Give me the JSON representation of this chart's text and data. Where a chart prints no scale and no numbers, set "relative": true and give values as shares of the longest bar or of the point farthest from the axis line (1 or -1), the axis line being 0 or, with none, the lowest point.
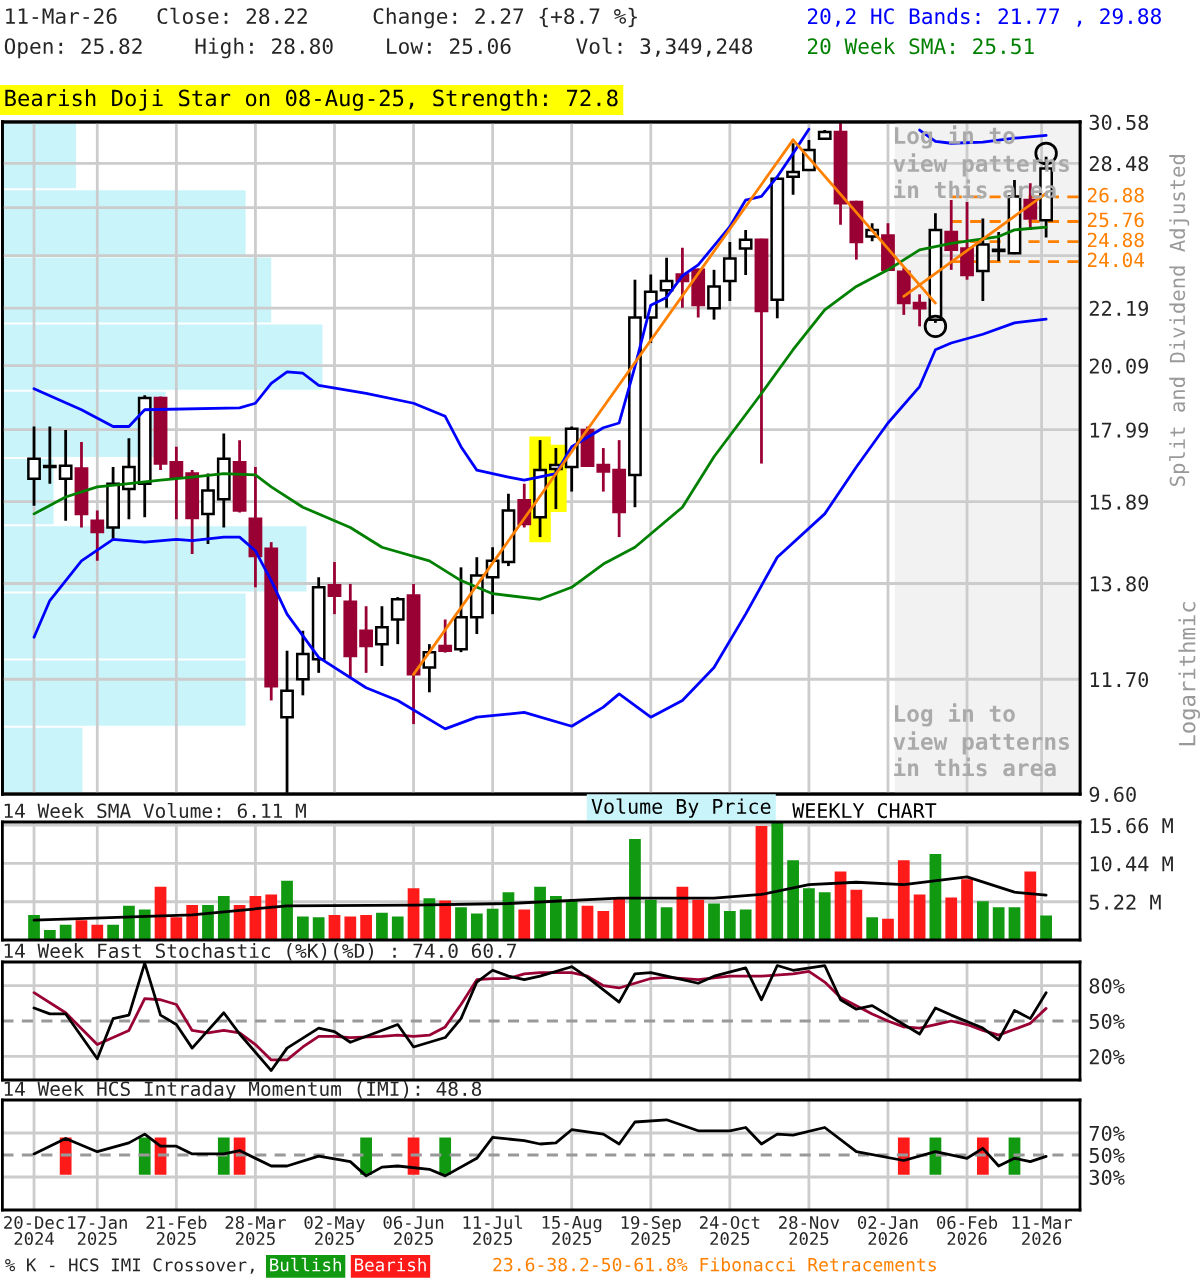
{
  "chart_data": [
    {
      "type": "candlestick",
      "title": "11-Mar-26   Close: 28.22     Change: 2.27 {+8.7 %}",
      "subtitle": "Open: 25.82    High: 28.80    Low: 25.06     Vol: 3,349,248",
      "ylabel": "Split and Dividend Adjusted",
      "annotations": [
        "Bearish Doji Star on 08-Aug-25, Strength: 72.8",
        "Log in to\nview patterns\nin this area",
        "Log in to\nview patterns\nin this area",
        "Logarithmic",
        "23.6-38.2-50-61.8% Fibonacci Retracements",
        "Volume By Price"
      ],
      "x": [
        "2024-12-20",
        "2024-12-27",
        "2025-01-03",
        "2025-01-10",
        "2025-01-17",
        "2025-01-24",
        "2025-01-31",
        "2025-02-07",
        "2025-02-14",
        "2025-02-21",
        "2025-02-28",
        "2025-03-07",
        "2025-03-14",
        "2025-03-21",
        "2025-03-28",
        "2025-04-04",
        "2025-04-11",
        "2025-04-18",
        "2025-04-25",
        "2025-05-02",
        "2025-05-09",
        "2025-05-16",
        "2025-05-23",
        "2025-05-30",
        "2025-06-06",
        "2025-06-13",
        "2025-06-20",
        "2025-06-27",
        "2025-07-04",
        "2025-07-11",
        "2025-07-18",
        "2025-07-25",
        "2025-08-01",
        "2025-08-08",
        "2025-08-15",
        "2025-08-22",
        "2025-08-29",
        "2025-09-05",
        "2025-09-12",
        "2025-09-19",
        "2025-09-26",
        "2025-10-03",
        "2025-10-10",
        "2025-10-17",
        "2025-10-24",
        "2025-10-31",
        "2025-11-07",
        "2025-11-14",
        "2025-11-21",
        "2025-11-28",
        "2025-12-05",
        "2025-12-12",
        "2025-12-19",
        "2025-12-26",
        "2026-01-02",
        "2026-01-09",
        "2026-01-16",
        "2026-01-23",
        "2026-01-30",
        "2026-02-06",
        "2026-02-13",
        "2026-02-20",
        "2026-02-27",
        "2026-03-06",
        "2026-03-13"
      ],
      "ohlc": [
        [
          16.53,
          18.09,
          15.78,
          17.11
        ],
        [
          16.87,
          18.09,
          16.39,
          16.9
        ],
        [
          16.53,
          17.98,
          15.38,
          16.91
        ],
        [
          16.83,
          17.61,
          15.2,
          15.56
        ],
        [
          15.38,
          15.65,
          14.35,
          15.08
        ],
        [
          15.2,
          16.87,
          14.89,
          16.39
        ],
        [
          16.24,
          17.73,
          15.42,
          16.87
        ],
        [
          16.39,
          19.09,
          15.47,
          19.0
        ],
        [
          19.0,
          19.05,
          16.78,
          16.97
        ],
        [
          17.01,
          17.47,
          15.42,
          16.58
        ],
        [
          16.68,
          16.78,
          14.52,
          15.45
        ],
        [
          15.56,
          16.68,
          14.77,
          16.2
        ],
        [
          15.96,
          17.87,
          15.2,
          17.11
        ],
        [
          17.01,
          17.67,
          15.6,
          15.65
        ],
        [
          15.43,
          16.87,
          13.71,
          14.47
        ],
        [
          14.65,
          14.82,
          11.28,
          11.56
        ],
        [
          10.96,
          12.29,
          9.62,
          11.47
        ],
        [
          11.7,
          12.72,
          11.38,
          12.22
        ],
        [
          12.11,
          13.95,
          11.83,
          13.71
        ],
        [
          13.76,
          14.32,
          13.09,
          13.51
        ],
        [
          13.37,
          13.79,
          11.74,
          12.18
        ],
        [
          12.72,
          13.27,
          11.83,
          12.39
        ],
        [
          12.43,
          13.27,
          11.97,
          12.8
        ],
        [
          12.97,
          13.48,
          12.43,
          13.43
        ],
        [
          13.52,
          13.79,
          10.83,
          11.8
        ],
        [
          11.94,
          12.43,
          11.44,
          12.26
        ],
        [
          12.39,
          12.97,
          12.25,
          12.29
        ],
        [
          12.32,
          14.19,
          12.26,
          13.02
        ],
        [
          13.02,
          14.44,
          12.65,
          13.99
        ],
        [
          13.95,
          14.69,
          13.09,
          14.35
        ],
        [
          14.32,
          16.11,
          14.22,
          15.65
        ],
        [
          15.93,
          16.39,
          15.2,
          15.29
        ],
        [
          15.47,
          17.67,
          14.95,
          16.78
        ],
        [
          16.81,
          17.43,
          15.69,
          16.93
        ],
        [
          16.87,
          18.09,
          16.17,
          18.02
        ],
        [
          17.98,
          18.09,
          16.87,
          16.91
        ],
        [
          16.93,
          17.43,
          16.17,
          16.74
        ],
        [
          16.78,
          17.67,
          14.95,
          15.61
        ],
        [
          16.64,
          23.3,
          15.74,
          21.83
        ],
        [
          21.83,
          23.51,
          20.89,
          22.82
        ],
        [
          22.88,
          24.2,
          22.2,
          23.25
        ],
        [
          23.51,
          24.62,
          22.2,
          23.25
        ],
        [
          23.7,
          23.75,
          21.83,
          22.31
        ],
        [
          22.18,
          23.7,
          21.75,
          23.03
        ],
        [
          23.25,
          24.87,
          22.46,
          24.17
        ],
        [
          24.59,
          25.39,
          23.49,
          24.96
        ],
        [
          24.96,
          25.0,
          16.97,
          22.08
        ],
        [
          22.51,
          27.83,
          21.8,
          27.73
        ],
        [
          27.83,
          29.48,
          26.98,
          28.05
        ],
        [
          28.15,
          29.65,
          28.1,
          29.14
        ],
        [
          29.71,
          30.16,
          29.65,
          30.06
        ],
        [
          30.06,
          30.55,
          25.62,
          26.58
        ],
        [
          26.64,
          26.7,
          24.12,
          24.87
        ],
        [
          25.1,
          25.68,
          24.9,
          25.39
        ],
        [
          25.15,
          25.68,
          23.65,
          23.7
        ],
        [
          23.62,
          23.79,
          21.93,
          22.38
        ],
        [
          22.38,
          22.72,
          21.5,
          22.18
        ],
        [
          21.75,
          26.13,
          21.63,
          25.39
        ],
        [
          25.3,
          26.73,
          23.7,
          24.53
        ],
        [
          24.59,
          26.64,
          23.3,
          23.49
        ],
        [
          23.65,
          25.89,
          22.46,
          24.76
        ],
        [
          24.48,
          25.3,
          24.06,
          24.53
        ],
        [
          24.39,
          27.67,
          24.35,
          26.89
        ],
        [
          26.73,
          27.51,
          25.39,
          25.89
        ],
        [
          25.82,
          28.8,
          25.06,
          28.22
        ]
      ],
      "series": [
        {
          "type": "bar",
          "color": "#ffff00",
          "x": [
            "2025-08-01",
            "2025-08-08"
          ],
          "base": [
            14.82,
            15.61
          ],
          "values": [
            2.96,
            1.92
          ]
        },
        {
          "type": "line",
          "name": "20,2 HC Bands: 21.77 , 29.88",
          "color": "#0000ff",
          "x": [
            "2024-12-20",
            "2025-01-10",
            "2025-01-24",
            "2025-01-31",
            "2025-02-07",
            "2025-03-21",
            "2025-03-28",
            "2025-04-04",
            "2025-04-11",
            "2025-04-18",
            "2025-04-25",
            "2025-05-16",
            "2025-06-06",
            "2025-06-20",
            "2025-06-27",
            "2025-07-04",
            "2025-07-18",
            "2025-07-25",
            "2025-08-08",
            "2025-08-15",
            "2025-08-29",
            "2025-09-05",
            "2025-09-12",
            "2025-09-19",
            "2025-09-26",
            "2025-10-03",
            "2025-10-10",
            "2025-10-24",
            "2025-10-31",
            "2025-11-07",
            "2025-11-14",
            "2025-11-21",
            "2025-11-28",
            "2025-12-19",
            "2026-01-16",
            "2026-01-23",
            "2026-01-30",
            "2026-02-13",
            "2026-02-27",
            "2026-03-13"
          ],
          "values": [
            19.31,
            18.62,
            18.09,
            18.09,
            18.62,
            18.68,
            18.83,
            19.49,
            19.88,
            19.83,
            19.42,
            19.15,
            18.83,
            18.41,
            17.47,
            16.78,
            16.58,
            16.49,
            16.68,
            17.47,
            18.05,
            18.2,
            20.06,
            22.3,
            22.6,
            23.46,
            23.9,
            25.53,
            26.73,
            26.9,
            27.83,
            28.97,
            30.2,
            null,
            30.16,
            29.58,
            29.48,
            29.54,
            29.74,
            29.88
          ]
        },
        {
          "type": "line",
          "color": "#0000ff",
          "x": [
            "2024-12-20",
            "2024-12-27",
            "2025-01-10",
            "2025-01-24",
            "2025-02-07",
            "2025-02-21",
            "2025-02-28",
            "2025-03-14",
            "2025-03-21",
            "2025-03-28",
            "2025-04-04",
            "2025-04-11",
            "2025-04-25",
            "2025-05-16",
            "2025-05-30",
            "2025-06-20",
            "2025-07-04",
            "2025-07-25",
            "2025-08-15",
            "2025-08-29",
            "2025-09-05",
            "2025-09-19",
            "2025-10-03",
            "2025-10-17",
            "2025-10-31",
            "2025-11-14",
            "2025-12-05",
            "2025-12-19",
            "2026-01-02",
            "2026-01-16",
            "2026-01-23",
            "2026-01-30",
            "2026-02-13",
            "2026-02-27",
            "2026-03-13"
          ],
          "values": [
            12.58,
            13.4,
            14.35,
            14.89,
            14.82,
            14.89,
            14.86,
            14.95,
            14.95,
            14.6,
            13.87,
            13.09,
            12.15,
            11.53,
            11.28,
            10.74,
            10.96,
            11.05,
            10.79,
            11.15,
            11.41,
            10.96,
            11.28,
            11.94,
            13.09,
            14.44,
            15.56,
            16.87,
            18.2,
            19.38,
            20.65,
            20.89,
            21.21,
            21.63,
            21.77
          ]
        },
        {
          "type": "line",
          "name": "20 Week SMA: 25.51",
          "color": "#008000",
          "x": [
            "2024-12-20",
            "2025-01-03",
            "2025-01-17",
            "2025-01-31",
            "2025-02-14",
            "2025-02-28",
            "2025-03-14",
            "2025-03-28",
            "2025-04-04",
            "2025-04-18",
            "2025-05-09",
            "2025-05-23",
            "2025-06-13",
            "2025-06-27",
            "2025-07-11",
            "2025-08-01",
            "2025-08-15",
            "2025-08-29",
            "2025-09-12",
            "2025-10-03",
            "2025-10-17",
            "2025-11-07",
            "2025-11-21",
            "2025-12-05",
            "2025-12-19",
            "2026-01-02",
            "2026-01-16",
            "2026-01-30",
            "2026-02-20",
            "2026-02-27",
            "2026-03-13"
          ],
          "values": [
            15.56,
            16.02,
            16.3,
            16.39,
            16.49,
            16.58,
            16.68,
            16.64,
            16.3,
            15.74,
            15.2,
            14.69,
            14.35,
            13.87,
            13.56,
            13.43,
            13.71,
            14.27,
            14.69,
            15.74,
            17.17,
            19.15,
            20.65,
            22.12,
            23.03,
            23.7,
            24.53,
            24.81,
            25.1,
            25.39,
            25.51
          ]
        },
        {
          "type": "line",
          "color": "#ff8000",
          "x": [
            "2025-06-06",
            "2025-11-21"
          ],
          "values": [
            11.8,
            29.65
          ]
        },
        {
          "type": "line",
          "color": "#ff8000",
          "x": [
            "2025-11-21",
            "2026-01-23"
          ],
          "values": [
            29.65,
            22.38
          ]
        },
        {
          "type": "line",
          "color": "#ff8000",
          "x": [
            "2026-01-09",
            "2026-03-13"
          ],
          "values": [
            22.64,
            27.04
          ]
        },
        {
          "type": "scatter",
          "color": "#000000",
          "marker": "circle",
          "x": [
            "2026-01-23",
            "2026-03-13"
          ],
          "values": [
            21.5,
            28.97
          ]
        }
      ],
      "xlim": [
        "2024-12-06",
        "2026-03-28"
      ],
      "ylim": [
        9.6,
        30.58
      ],
      "log": true,
      "grid": true,
      "tick_labels": "y",
      "legend": "top right",
      "xticks": [
        {
          "value": "2024-12-20",
          "label": null
        },
        {
          "value": "2025-01-17",
          "label": null
        },
        {
          "value": "2025-02-21",
          "label": null
        },
        {
          "value": "2025-03-28",
          "label": null
        },
        {
          "value": "2025-05-02",
          "label": null
        },
        {
          "value": "2025-06-06",
          "label": null
        },
        {
          "value": "2025-07-11",
          "label": null
        },
        {
          "value": "2025-08-15",
          "label": null
        },
        {
          "value": "2025-09-19",
          "label": null
        },
        {
          "value": "2025-10-24",
          "label": null
        },
        {
          "value": "2025-11-28",
          "label": null
        },
        {
          "value": "2026-01-02",
          "label": null
        },
        {
          "value": "2026-02-06",
          "label": null
        },
        {
          "value": "2026-03-11",
          "label": null
        }
      ],
      "yticks": [
        {
          "value": 9.6,
          "label": "9.60"
        },
        {
          "value": 11.7,
          "label": "11.70"
        },
        {
          "value": 13.8,
          "label": "13.80"
        },
        15.89,
        17.99,
        20.09,
        22.19,
        {
          "value": 24.29,
          "label": null
        },
        {
          "value": 26.38,
          "label": null
        },
        28.48,
        30.58
      ],
      "ref_lines": [
        {
          "axis": "y",
          "value": 26.88,
          "label": "26.88",
          "color": "#ff8000",
          "line_style": "dashed"
        },
        {
          "axis": "y",
          "value": 25.76,
          "label": "25.76",
          "color": "#ff8000",
          "line_style": "dashed"
        },
        {
          "axis": "y",
          "value": 24.88,
          "label": "24.88",
          "color": "#ff8000",
          "line_style": "dashed"
        },
        {
          "axis": "y",
          "value": 24.04,
          "label": "24.04",
          "color": "#ff8000",
          "line_style": "dashed"
        }
      ],
      "bands": [
        {
          "axis": "x",
          "from": "2026-01-05",
          "to": "2026-03-28",
          "color": "#f2f2f2"
        }
      ]
    },
    {
      "type": "bar",
      "orientation": "horizontal",
      "relative": true,
      "color": "#c8f4fa",
      "categories": [
        null,
        null,
        null,
        null,
        null,
        null,
        null,
        null,
        null,
        null
      ],
      "values": [
        0.23,
        0.76,
        0.84,
        1,
        0.51,
        0.16,
        0.95,
        0.76,
        0.76,
        0.25
      ]
    },
    {
      "type": "bar",
      "title": "14 Week SMA Volume: 6.11 M",
      "annotations": [
        "WEEKLY CHART"
      ],
      "x": [
        "2024-12-20",
        "2024-12-27",
        "2025-01-03",
        "2025-01-10",
        "2025-01-17",
        "2025-01-24",
        "2025-01-31",
        "2025-02-07",
        "2025-02-14",
        "2025-02-21",
        "2025-02-28",
        "2025-03-07",
        "2025-03-14",
        "2025-03-21",
        "2025-03-28",
        "2025-04-04",
        "2025-04-11",
        "2025-04-18",
        "2025-04-25",
        "2025-05-02",
        "2025-05-09",
        "2025-05-16",
        "2025-05-23",
        "2025-05-30",
        "2025-06-06",
        "2025-06-13",
        "2025-06-20",
        "2025-06-27",
        "2025-07-04",
        "2025-07-11",
        "2025-07-18",
        "2025-07-25",
        "2025-08-01",
        "2025-08-08",
        "2025-08-15",
        "2025-08-22",
        "2025-08-29",
        "2025-09-05",
        "2025-09-12",
        "2025-09-19",
        "2025-09-26",
        "2025-10-03",
        "2025-10-10",
        "2025-10-17",
        "2025-10-24",
        "2025-10-31",
        "2025-11-07",
        "2025-11-14",
        "2025-11-21",
        "2025-11-28",
        "2025-12-05",
        "2025-12-12",
        "2025-12-19",
        "2025-12-26",
        "2026-01-02",
        "2026-01-09",
        "2026-01-16",
        "2026-01-23",
        "2026-01-30",
        "2026-02-06",
        "2026-02-13",
        "2026-02-20",
        "2026-02-27",
        "2026-03-06",
        "2026-03-13"
      ],
      "series": [
        {
          "type": "bar",
          "values": [
            3.42,
            1.35,
            2.07,
            2.7,
            2.07,
            2.07,
            4.67,
            4.15,
            7.26,
            3.11,
            4.77,
            4.77,
            6.01,
            4.77,
            6.01,
            6.22,
            8.09,
            3.21,
            3.11,
            3.42,
            3.21,
            3.42,
            3.73,
            3.21,
            7.05,
            5.7,
            5.39,
            4.46,
            3.63,
            4.25,
            6.53,
            4.15,
            7.26,
            6.01,
            5.39,
            4.67,
            3.94,
            5.81,
            13.79,
            5.5,
            4.46,
            7.26,
            5.5,
            4.98,
            3.94,
            4.15,
            15.56,
            16.07,
            10.89,
            7.05,
            6.53,
            9.33,
            6.84,
            3.11,
            2.9,
            10.89,
            6.22,
            11.72,
            5.81,
            8.3,
            5.29,
            4.46,
            4.46,
            9.33,
            3.35
          ],
          "colors": [
            "#119911",
            "#119911",
            "#119911",
            "#ff1a1a",
            "#ff1a1a",
            "#119911",
            "#119911",
            "#119911",
            "#ff1a1a",
            "#ff1a1a",
            "#ff1a1a",
            "#119911",
            "#119911",
            "#ff1a1a",
            "#ff1a1a",
            "#ff1a1a",
            "#119911",
            "#119911",
            "#119911",
            "#ff1a1a",
            "#ff1a1a",
            "#ff1a1a",
            "#119911",
            "#119911",
            "#ff1a1a",
            "#119911",
            "#ff1a1a",
            "#119911",
            "#119911",
            "#119911",
            "#119911",
            "#ff1a1a",
            "#119911",
            "#119911",
            "#119911",
            "#ff1a1a",
            "#ff1a1a",
            "#ff1a1a",
            "#119911",
            "#119911",
            "#119911",
            "#ff1a1a",
            "#ff1a1a",
            "#119911",
            "#119911",
            "#119911",
            "#ff1a1a",
            "#119911",
            "#119911",
            "#119911",
            "#119911",
            "#ff1a1a",
            "#ff1a1a",
            "#119911",
            "#ff1a1a",
            "#ff1a1a",
            "#ff1a1a",
            "#119911",
            "#ff1a1a",
            "#ff1a1a",
            "#119911",
            "#119911",
            "#119911",
            "#ff1a1a",
            "#119911"
          ]
        },
        {
          "type": "line",
          "color": "#000000",
          "x": [
            "2024-12-20",
            "2025-02-28",
            "2025-04-11",
            "2025-06-06",
            "2025-07-18",
            "2025-09-05",
            "2025-10-17",
            "2025-11-07",
            "2025-11-28",
            "2025-12-19",
            "2026-01-09",
            "2026-02-06",
            "2026-02-27",
            "2026-03-13"
          ],
          "values": [
            2.7,
            3.42,
            4.67,
            4.77,
            4.98,
            5.7,
            5.7,
            6.22,
            7.57,
            7.88,
            7.57,
            8.61,
            6.53,
            6.11
          ]
        }
      ],
      "xlim": [
        "2024-12-06",
        "2026-03-28"
      ],
      "ylim": [
        0,
        16.1
      ],
      "grid": true,
      "tick_labels": "y",
      "xticks": [
        {
          "value": "2024-12-20",
          "label": null
        },
        {
          "value": "2025-01-17",
          "label": null
        },
        {
          "value": "2025-02-21",
          "label": null
        },
        {
          "value": "2025-03-28",
          "label": null
        },
        {
          "value": "2025-05-02",
          "label": null
        },
        {
          "value": "2025-06-06",
          "label": null
        },
        {
          "value": "2025-07-11",
          "label": null
        },
        {
          "value": "2025-08-15",
          "label": null
        },
        {
          "value": "2025-09-19",
          "label": null
        },
        {
          "value": "2025-10-24",
          "label": null
        },
        {
          "value": "2025-11-28",
          "label": null
        },
        {
          "value": "2026-01-02",
          "label": null
        },
        {
          "value": "2026-02-06",
          "label": null
        },
        {
          "value": "2026-03-11",
          "label": null
        }
      ],
      "yticks": [
        {
          "value": 5.22,
          "label": "5.22 M"
        },
        {
          "value": 10.44,
          "label": "10.44 M"
        },
        {
          "value": 15.66,
          "label": "15.66 M"
        }
      ]
    },
    {
      "type": "line",
      "title": "14 Week Fast Stochastic (%K)(%D) : 74.0 60.7",
      "series": [
        {
          "color": "#990033",
          "x": [
            "2024-12-20",
            "2025-01-03",
            "2025-01-17",
            "2025-01-31",
            "2025-02-07",
            "2025-02-14",
            "2025-02-21",
            "2025-02-28",
            "2025-03-07",
            "2025-03-14",
            "2025-03-21",
            "2025-03-28",
            "2025-04-04",
            "2025-04-11",
            "2025-04-18",
            "2025-04-25",
            "2025-05-02",
            "2025-05-09",
            "2025-05-23",
            "2025-05-30",
            "2025-06-06",
            "2025-06-13",
            "2025-06-20",
            "2025-06-27",
            "2025-07-04",
            "2025-07-11",
            "2025-07-18",
            "2025-07-25",
            "2025-08-01",
            "2025-08-15",
            "2025-08-22",
            "2025-08-29",
            "2025-09-05",
            "2025-09-12",
            "2025-09-19",
            "2025-09-26",
            "2025-10-10",
            "2025-10-24",
            "2025-11-07",
            "2025-11-21",
            "2025-11-28",
            "2025-12-05",
            "2025-12-12",
            "2025-12-19",
            "2025-12-26",
            "2026-01-02",
            "2026-01-09",
            "2026-01-16",
            "2026-01-23",
            "2026-01-30",
            "2026-02-06",
            "2026-02-13",
            "2026-02-20",
            "2026-02-27",
            "2026-03-06",
            "2026-03-13"
          ],
          "values": [
            74,
            57,
            30,
            42,
            69,
            68,
            64,
            42,
            40,
            42,
            40,
            30,
            17,
            17,
            28,
            37,
            37,
            36,
            37,
            38,
            37,
            38,
            45,
            64,
            85,
            86,
            86,
            90,
            91,
            91,
            88,
            80,
            78,
            82,
            86,
            87,
            85,
            88,
            88,
            90,
            92,
            83,
            70,
            63,
            56,
            50,
            45,
            44,
            47,
            50,
            47,
            42,
            38,
            43,
            48,
            60.7
          ]
        },
        {
          "color": "#000000",
          "x": [
            "2024-12-20",
            "2024-12-27",
            "2025-01-03",
            "2025-01-17",
            "2025-01-24",
            "2025-01-31",
            "2025-02-07",
            "2025-02-14",
            "2025-02-21",
            "2025-02-28",
            "2025-03-14",
            "2025-03-21",
            "2025-04-04",
            "2025-04-11",
            "2025-04-25",
            "2025-05-02",
            "2025-05-09",
            "2025-05-30",
            "2025-06-06",
            "2025-06-20",
            "2025-06-27",
            "2025-07-04",
            "2025-07-11",
            "2025-07-18",
            "2025-07-25",
            "2025-08-01",
            "2025-08-15",
            "2025-08-22",
            "2025-09-05",
            "2025-09-12",
            "2025-09-19",
            "2025-10-03",
            "2025-10-10",
            "2025-10-17",
            "2025-10-31",
            "2025-11-07",
            "2025-11-14",
            "2025-11-21",
            "2025-12-05",
            "2025-12-12",
            "2025-12-19",
            "2025-12-26",
            "2026-01-09",
            "2026-01-16",
            "2026-01-23",
            "2026-01-30",
            "2026-02-13",
            "2026-02-20",
            "2026-02-27",
            "2026-03-06",
            "2026-03-13"
          ],
          "values": [
            61,
            56,
            56,
            18,
            52,
            55,
            99,
            55,
            47,
            27,
            57,
            39,
            8,
            27,
            44,
            41,
            32,
            47,
            28,
            36,
            52,
            83,
            93,
            88,
            85,
            88,
            96,
            87,
            66,
            90,
            91,
            85,
            82,
            88,
            95,
            68,
            97,
            93,
            97,
            68,
            60,
            63,
            47,
            39,
            61,
            55,
            44,
            34,
            59,
            52,
            74.0
          ]
        }
      ],
      "xlim": [
        "2024-12-06",
        "2026-03-28"
      ],
      "ylim": [
        0,
        100
      ],
      "grid": true,
      "tick_labels": "y",
      "xticks": [
        {
          "value": "2024-12-20",
          "label": null
        },
        {
          "value": "2025-01-17",
          "label": null
        },
        {
          "value": "2025-02-21",
          "label": null
        },
        {
          "value": "2025-03-28",
          "label": null
        },
        {
          "value": "2025-05-02",
          "label": null
        },
        {
          "value": "2025-06-06",
          "label": null
        },
        {
          "value": "2025-07-11",
          "label": null
        },
        {
          "value": "2025-08-15",
          "label": null
        },
        {
          "value": "2025-09-19",
          "label": null
        },
        {
          "value": "2025-10-24",
          "label": null
        },
        {
          "value": "2025-11-28",
          "label": null
        },
        {
          "value": "2026-01-02",
          "label": null
        },
        {
          "value": "2026-02-06",
          "label": null
        },
        {
          "value": "2026-03-11",
          "label": null
        }
      ],
      "yticks": [
        {
          "value": 20,
          "label": "20%"
        },
        {
          "value": 50,
          "label": "50%"
        },
        {
          "value": 80,
          "label": "80%"
        }
      ],
      "ref_lines": [
        {
          "axis": "y",
          "value": 50,
          "color": "#999999",
          "line_style": "dashed"
        }
      ]
    },
    {
      "type": "line",
      "title": "14 Week HCS Intraday Momentum (IMI): 48.8",
      "legend": "bottom",
      "legend_title": "% K - HCS IMI Crossover,",
      "series": [
        {
          "type": "bar",
          "name": "Bullish",
          "color": "#119911",
          "x": [
            "2025-02-07",
            "2025-03-14",
            "2025-05-16",
            "2025-06-20",
            "2026-01-23",
            "2026-02-27"
          ],
          "base": [
            32,
            32,
            32,
            32,
            32,
            32
          ],
          "values": [
            34,
            34,
            34,
            34,
            34,
            34
          ]
        },
        {
          "type": "bar",
          "name": "Bearish",
          "color": "#ff1a1a",
          "x": [
            "2025-01-03",
            "2025-02-14",
            "2025-03-21",
            "2025-06-06",
            "2026-01-09",
            "2026-02-13"
          ],
          "base": [
            32,
            32,
            32,
            32,
            32,
            32
          ],
          "values": [
            34,
            34,
            34,
            34,
            34,
            34
          ]
        },
        {
          "type": "line",
          "color": "#000000",
          "x": [
            "2024-12-20",
            "2025-01-03",
            "2025-01-17",
            "2025-01-31",
            "2025-02-07",
            "2025-02-14",
            "2025-02-21",
            "2025-02-28",
            "2025-03-14",
            "2025-03-21",
            "2025-04-04",
            "2025-04-11",
            "2025-04-25",
            "2025-05-09",
            "2025-05-16",
            "2025-05-23",
            "2025-05-30",
            "2025-06-13",
            "2025-06-20",
            "2025-07-04",
            "2025-07-11",
            "2025-07-25",
            "2025-08-01",
            "2025-08-08",
            "2025-08-15",
            "2025-08-29",
            "2025-09-05",
            "2025-09-12",
            "2025-09-26",
            "2025-10-10",
            "2025-10-24",
            "2025-10-31",
            "2025-11-07",
            "2025-11-14",
            "2025-11-21",
            "2025-12-05",
            "2025-12-19",
            "2026-01-09",
            "2026-01-23",
            "2026-02-06",
            "2026-02-13",
            "2026-02-20",
            "2026-02-27",
            "2026-03-06",
            "2026-03-13"
          ],
          "values": [
            51,
            65,
            53,
            61,
            69,
            58,
            58,
            51,
            51,
            54,
            40,
            40,
            49,
            44,
            31,
            39,
            40,
            37,
            31,
            47,
            66,
            63,
            60,
            61,
            73,
            69,
            60,
            80,
            82,
            72,
            72,
            75,
            60,
            69,
            68,
            75,
            53,
            45,
            53,
            47,
            56,
            40,
            47,
            44,
            48.8
          ]
        }
      ],
      "xlim": [
        "2024-12-06",
        "2026-03-28"
      ],
      "ylim": [
        0,
        100
      ],
      "grid": true,
      "xticks": [
        {
          "value": "2024-12-20",
          "label": "20-Dec\n2024"
        },
        {
          "value": "2025-01-17",
          "label": "17-Jan\n2025"
        },
        {
          "value": "2025-02-21",
          "label": "21-Feb\n2025"
        },
        {
          "value": "2025-03-28",
          "label": "28-Mar\n2025"
        },
        {
          "value": "2025-05-02",
          "label": "02-May\n2025"
        },
        {
          "value": "2025-06-06",
          "label": "06-Jun\n2025"
        },
        {
          "value": "2025-07-11",
          "label": "11-Jul\n2025"
        },
        {
          "value": "2025-08-15",
          "label": "15-Aug\n2025"
        },
        {
          "value": "2025-09-19",
          "label": "19-Sep\n2025"
        },
        {
          "value": "2025-10-24",
          "label": "24-Oct\n2025"
        },
        {
          "value": "2025-11-28",
          "label": "28-Nov\n2025"
        },
        {
          "value": "2026-01-02",
          "label": "02-Jan\n2026"
        },
        {
          "value": "2026-02-06",
          "label": "06-Feb\n2026"
        },
        {
          "value": "2026-03-11",
          "label": "11-Mar\n2026"
        }
      ],
      "yticks": [
        {
          "value": 30,
          "label": "30%"
        },
        {
          "value": 50,
          "label": "50%"
        },
        {
          "value": 70,
          "label": "70%"
        }
      ],
      "ref_lines": [
        {
          "axis": "y",
          "value": 50,
          "color": "#999999",
          "line_style": "dashed"
        }
      ]
    }
  ]
}
